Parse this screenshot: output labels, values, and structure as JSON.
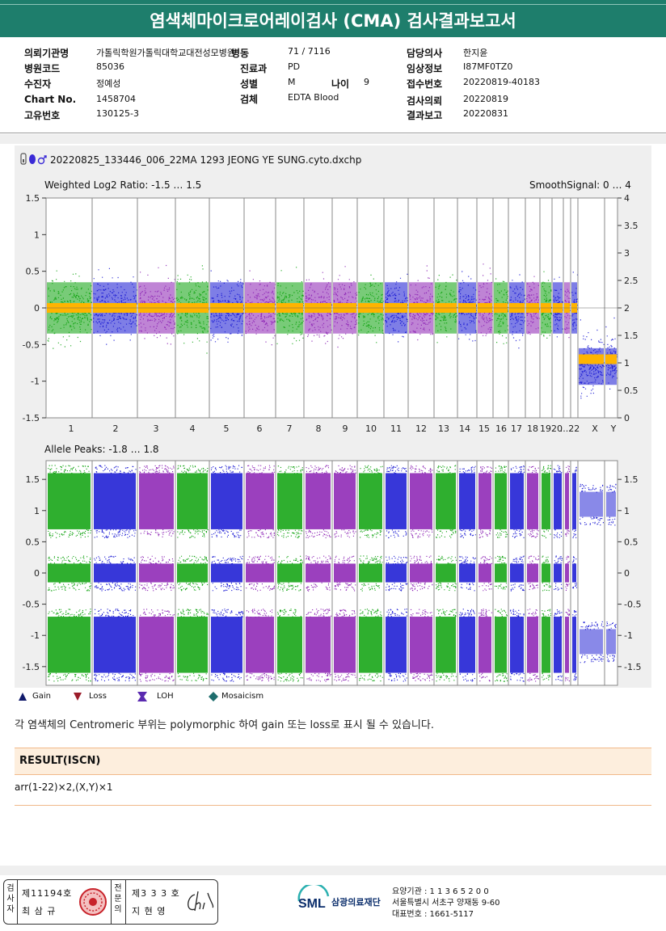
{
  "header": {
    "title": "염색체마이크로어레이검사 (CMA) 검사결과보고서"
  },
  "info": {
    "institution_label": "의뢰기관명",
    "institution": "가톨릭학원가톨릭대학교대전성모병원",
    "ward_label": "병동",
    "ward": "71 / 7116",
    "doctor_label": "담당의사",
    "doctor": "한지윤",
    "hospital_code_label": "병원코드",
    "hospital_code": "85036",
    "dept_label": "진료과",
    "dept": "PD",
    "clinical_label": "임상정보",
    "clinical": "I87MF0TZ0",
    "patient_label": "수진자",
    "patient": "정예성",
    "sex_label": "성별",
    "sex": "M",
    "age_label": "나이",
    "age": "9",
    "receipt_label": "접수번호",
    "receipt": "20220819-40183",
    "chart_label": "Chart No.",
    "chart": "1458704",
    "specimen_label": "검체",
    "specimen": "EDTA Blood",
    "request_date_label": "검사의뢰",
    "request_date": "20220819",
    "unique_label": "고유번호",
    "unique": "130125-3",
    "report_date_label": "결과보고",
    "report_date": "20220831"
  },
  "figure": {
    "filename": "20220825_133446_006_22MA 1293 JEONG YE SUNG.cyto.dxchp",
    "top_title": "Weighted Log2 Ratio: -1.5 … 1.5",
    "top_right_title": "SmoothSignal: 0 … 4",
    "bottom_title": "Allele Peaks: -1.8 … 1.8",
    "top_left_ticks": [
      "1.5",
      "1",
      "0.5",
      "0",
      "-0.5",
      "-1",
      "-1.5"
    ],
    "top_right_ticks": [
      "4",
      "3.5",
      "3",
      "2.5",
      "2",
      "1.5",
      "1",
      "0.5",
      "0"
    ],
    "bottom_left_ticks": [
      "1.5",
      "1",
      "0.5",
      "0",
      "-0.5",
      "-1",
      "-1.5"
    ],
    "bottom_right_ticks": [
      "1.5",
      "1",
      "0.5",
      "0",
      "-0.5",
      "-1",
      "-1.5"
    ],
    "chromosomes": [
      "1",
      "2",
      "3",
      "4",
      "5",
      "6",
      "7",
      "8",
      "9",
      "10",
      "11",
      "12",
      "13",
      "14",
      "15",
      "16",
      "17",
      "18",
      "19",
      "20",
      "...22",
      "X",
      "Y"
    ],
    "colors": {
      "green": "#0aa10a",
      "blue": "#1414d2",
      "purple": "#8a1fb3",
      "yellow": "#ffb400"
    }
  },
  "legend": {
    "gain": "Gain",
    "loss": "Loss",
    "loh": "LOH",
    "mosaicism": "Mosaicism"
  },
  "note": "각 염색체의 Centromeric 부위는 polymorphic 하여 gain 또는 loss로 표시 될 수 있습니다.",
  "result": {
    "heading": "RESULT(ISCN)",
    "text": "arr(1-22)×2,(X,Y)×1"
  },
  "footer": {
    "examiner_vertical": "검사자",
    "examiner_no": "제11194호",
    "examiner_name": "최 삼 규",
    "specialist_vertical": "전문의",
    "specialist_no": "제3 3 3 호",
    "specialist_name": "지 현 영",
    "org_abbr": "SML",
    "org_name": "삼광의료재단",
    "care_code": "요양기관 : 1 1 3 6 5 2 0 0",
    "address": "서울특별시 서초구 양재동 9-60",
    "phone": "대표번호 : 1661-5117"
  }
}
